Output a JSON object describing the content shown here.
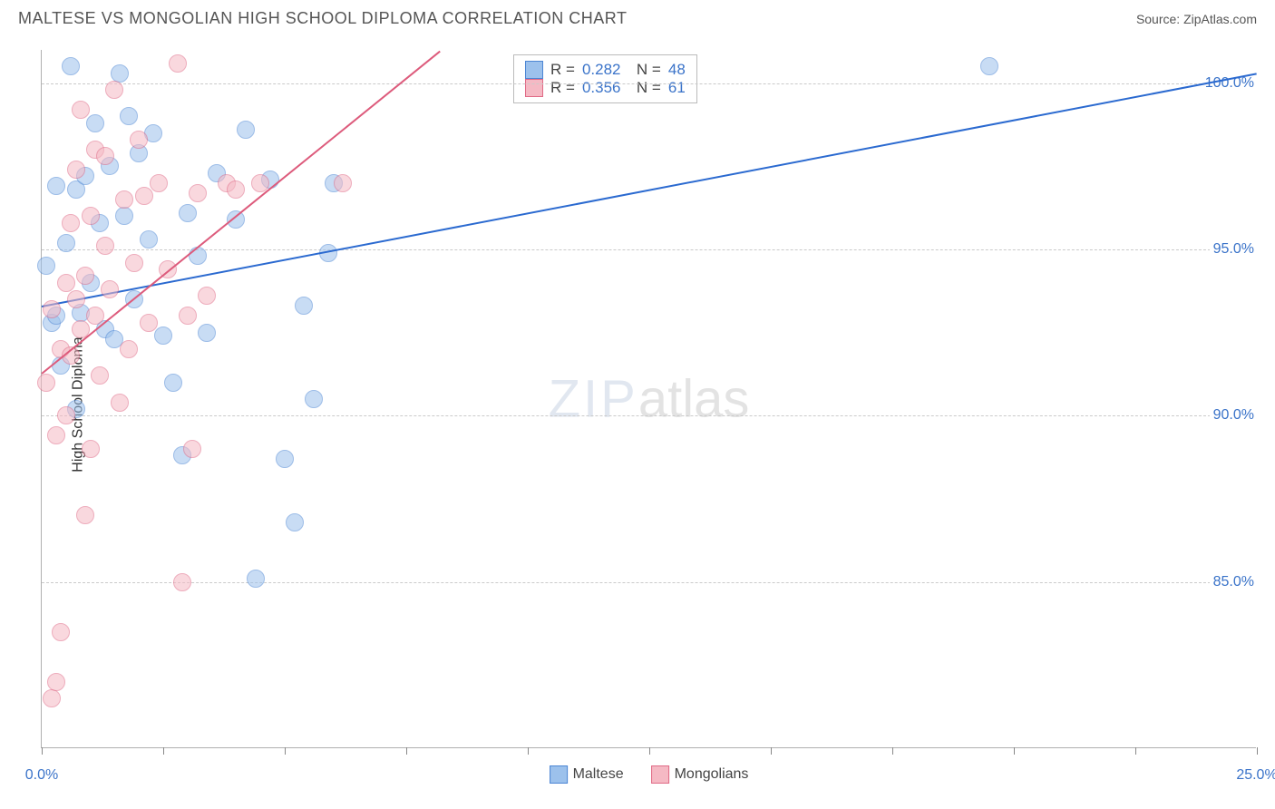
{
  "header": {
    "title": "MALTESE VS MONGOLIAN HIGH SCHOOL DIPLOMA CORRELATION CHART",
    "source": "Source: ZipAtlas.com"
  },
  "watermark": {
    "part1": "ZIP",
    "part2": "atlas"
  },
  "chart": {
    "type": "scatter",
    "ylabel": "High School Diploma",
    "background_color": "#ffffff",
    "grid_color": "#cacaca",
    "axis_color": "#b0b0b0",
    "font_family": "Arial",
    "title_fontsize": 18,
    "label_fontsize": 16,
    "tick_fontsize": 16,
    "tick_color": "#3a73c9",
    "xlim": [
      0,
      25
    ],
    "ylim": [
      80,
      101
    ],
    "yticks": [
      85,
      90,
      95,
      100
    ],
    "ytick_labels": [
      "85.0%",
      "90.0%",
      "95.0%",
      "100.0%"
    ],
    "xtick_positions": [
      0,
      2.5,
      5,
      7.5,
      10,
      12.5,
      15,
      17.5,
      20,
      22.5,
      25
    ],
    "xtick_labels": {
      "0": "0.0%",
      "25": "25.0%"
    },
    "marker_radius": 10,
    "marker_opacity": 0.55,
    "line_width": 2,
    "series": [
      {
        "name": "Maltese",
        "color_fill": "#9cc1ec",
        "color_stroke": "#4c86d4",
        "line_color": "#2b6ad0",
        "R": "0.282",
        "N": "48",
        "trend": {
          "x1": 0,
          "y1": 93.3,
          "x2": 25,
          "y2": 100.3
        },
        "points": [
          [
            0.1,
            94.5
          ],
          [
            0.2,
            92.8
          ],
          [
            0.3,
            93.0
          ],
          [
            0.3,
            96.9
          ],
          [
            0.4,
            91.5
          ],
          [
            0.5,
            95.2
          ],
          [
            0.6,
            100.5
          ],
          [
            0.7,
            96.8
          ],
          [
            0.7,
            90.2
          ],
          [
            0.8,
            93.1
          ],
          [
            0.9,
            97.2
          ],
          [
            1.0,
            94.0
          ],
          [
            1.1,
            98.8
          ],
          [
            1.2,
            95.8
          ],
          [
            1.3,
            92.6
          ],
          [
            1.4,
            97.5
          ],
          [
            1.5,
            92.3
          ],
          [
            1.6,
            100.3
          ],
          [
            1.7,
            96.0
          ],
          [
            1.8,
            99.0
          ],
          [
            1.9,
            93.5
          ],
          [
            2.0,
            97.9
          ],
          [
            2.2,
            95.3
          ],
          [
            2.3,
            98.5
          ],
          [
            2.5,
            92.4
          ],
          [
            2.7,
            91.0
          ],
          [
            2.9,
            88.8
          ],
          [
            3.0,
            96.1
          ],
          [
            3.2,
            94.8
          ],
          [
            3.4,
            92.5
          ],
          [
            3.6,
            97.3
          ],
          [
            4.0,
            95.9
          ],
          [
            4.2,
            98.6
          ],
          [
            4.4,
            85.1
          ],
          [
            4.7,
            97.1
          ],
          [
            5.0,
            88.7
          ],
          [
            5.2,
            86.8
          ],
          [
            5.4,
            93.3
          ],
          [
            5.6,
            90.5
          ],
          [
            5.9,
            94.9
          ],
          [
            6.0,
            97.0
          ],
          [
            19.5,
            100.5
          ]
        ]
      },
      {
        "name": "Mongolians",
        "color_fill": "#f5b9c4",
        "color_stroke": "#e06a86",
        "line_color": "#dd5b7c",
        "R": "0.356",
        "N": "61",
        "trend": {
          "x1": 0,
          "y1": 91.3,
          "x2": 8.2,
          "y2": 101
        },
        "points": [
          [
            0.1,
            91.0
          ],
          [
            0.2,
            81.5
          ],
          [
            0.2,
            93.2
          ],
          [
            0.3,
            82.0
          ],
          [
            0.3,
            89.4
          ],
          [
            0.4,
            92.0
          ],
          [
            0.4,
            83.5
          ],
          [
            0.5,
            94.0
          ],
          [
            0.5,
            90.0
          ],
          [
            0.6,
            91.8
          ],
          [
            0.6,
            95.8
          ],
          [
            0.7,
            93.5
          ],
          [
            0.7,
            97.4
          ],
          [
            0.8,
            92.6
          ],
          [
            0.8,
            99.2
          ],
          [
            0.9,
            94.2
          ],
          [
            0.9,
            87.0
          ],
          [
            1.0,
            96.0
          ],
          [
            1.0,
            89.0
          ],
          [
            1.1,
            93.0
          ],
          [
            1.1,
            98.0
          ],
          [
            1.2,
            91.2
          ],
          [
            1.3,
            95.1
          ],
          [
            1.3,
            97.8
          ],
          [
            1.4,
            93.8
          ],
          [
            1.5,
            99.8
          ],
          [
            1.6,
            90.4
          ],
          [
            1.7,
            96.5
          ],
          [
            1.8,
            92.0
          ],
          [
            1.9,
            94.6
          ],
          [
            2.0,
            98.3
          ],
          [
            2.1,
            96.6
          ],
          [
            2.2,
            92.8
          ],
          [
            2.4,
            97.0
          ],
          [
            2.6,
            94.4
          ],
          [
            2.8,
            100.6
          ],
          [
            2.9,
            85.0
          ],
          [
            3.0,
            93.0
          ],
          [
            3.1,
            89.0
          ],
          [
            3.2,
            96.7
          ],
          [
            3.4,
            93.6
          ],
          [
            3.8,
            97.0
          ],
          [
            4.0,
            96.8
          ],
          [
            4.5,
            97.0
          ],
          [
            6.2,
            97.0
          ]
        ]
      }
    ],
    "bottom_legend": [
      {
        "label": "Maltese",
        "fill": "#9cc1ec",
        "stroke": "#4c86d4"
      },
      {
        "label": "Mongolians",
        "fill": "#f5b9c4",
        "stroke": "#e06a86"
      }
    ]
  }
}
